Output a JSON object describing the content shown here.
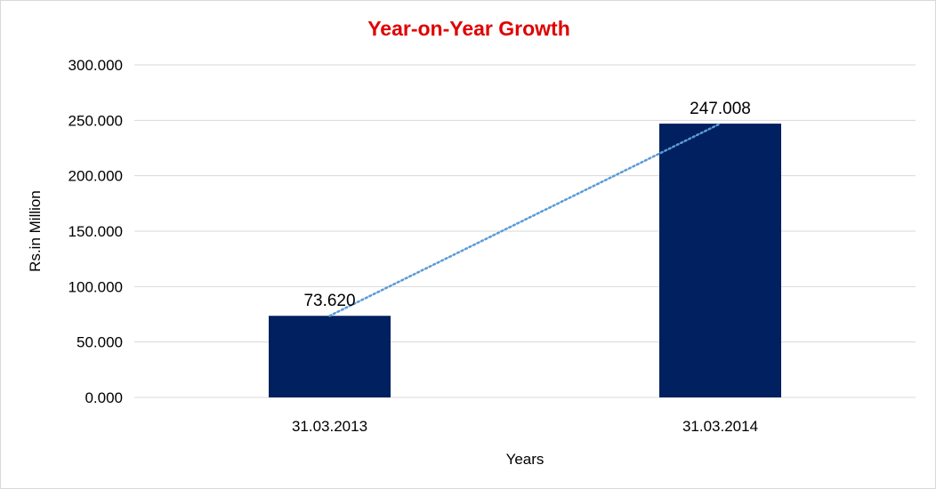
{
  "chart_data": {
    "type": "bar",
    "title": "Year-on-Year Growth",
    "xlabel": "Years",
    "ylabel": "Rs.in Million",
    "categories": [
      "31.03.2013",
      "31.03.2014"
    ],
    "values": [
      73.62,
      247.008
    ],
    "value_labels": [
      "73.620",
      "247.008"
    ],
    "ylim": [
      0,
      300
    ],
    "yticks": [
      0,
      50,
      100,
      150,
      200,
      250,
      300
    ],
    "ytick_labels": [
      "0.000",
      "50.000",
      "100.000",
      "150.000",
      "200.000",
      "250.000",
      "300.000"
    ],
    "grid": true,
    "legend": "none",
    "trendline": "linear",
    "colors": {
      "bar": "#002060",
      "title": "#e00000",
      "trendline": "#5b9bd5",
      "grid": "#d9d9d9"
    }
  }
}
